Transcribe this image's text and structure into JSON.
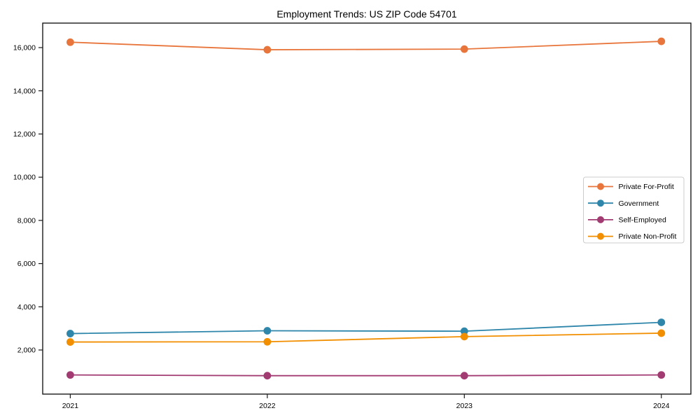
{
  "chart_data": {
    "type": "line",
    "title": "Employment Trends: US ZIP Code 54701",
    "x": [
      2021,
      2022,
      2023,
      2024
    ],
    "x_tick_labels": [
      "2021",
      "2022",
      "2023",
      "2024"
    ],
    "series": [
      {
        "name": "Private For-Profit",
        "color": "#E8763C",
        "values": [
          16250,
          15900,
          15930,
          16290
        ]
      },
      {
        "name": "Government",
        "color": "#2E86AB",
        "values": [
          2760,
          2890,
          2870,
          3280
        ]
      },
      {
        "name": "Self-Employed",
        "color": "#A23B72",
        "values": [
          845,
          810,
          810,
          845
        ]
      },
      {
        "name": "Private Non-Profit",
        "color": "#F18F01",
        "values": [
          2370,
          2380,
          2620,
          2780
        ]
      }
    ],
    "xlabel": "",
    "ylabel": "",
    "xlim": [
      2020.86,
      2024.15
    ],
    "ylim": [
      -42,
      17134
    ],
    "yticks": [
      2000,
      4000,
      6000,
      8000,
      10000,
      12000,
      14000,
      16000
    ],
    "ytick_labels": [
      "2,000",
      "4,000",
      "6,000",
      "8,000",
      "10,000",
      "12,000",
      "14,000",
      "16,000"
    ],
    "grid": false,
    "legend": {
      "position": "center right",
      "entries": [
        "Private For-Profit",
        "Government",
        "Self-Employed",
        "Private Non-Profit"
      ]
    }
  },
  "colors": {
    "background": "#ffffff",
    "axis": "#1a1a1a",
    "text": "#000000",
    "legend_border": "#cccccc",
    "legend_background": "#ffffff",
    "series": {
      "private_for_profit": "#E8763C",
      "government": "#2E86AB",
      "self_employed": "#A23B72",
      "private_non_profit": "#F18F01"
    }
  }
}
